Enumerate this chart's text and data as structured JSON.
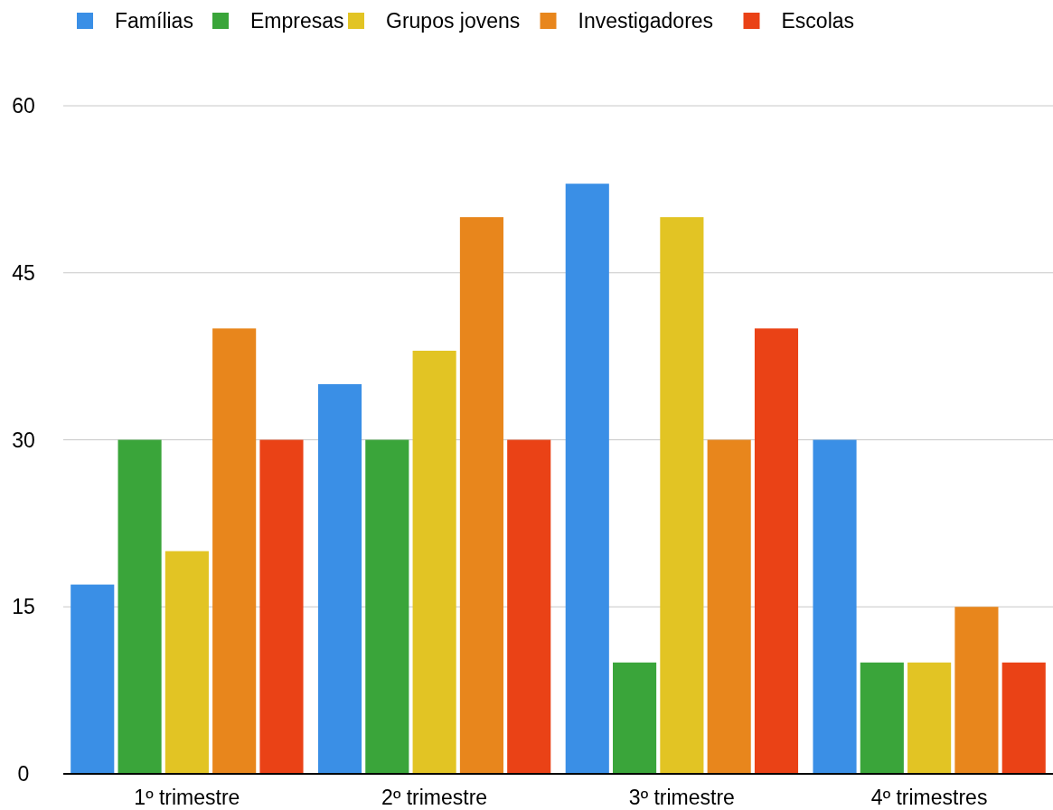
{
  "chart_data": {
    "type": "bar",
    "categories": [
      "1º trimestre",
      "2º trimestre",
      "3º trimestre",
      "4º trimestres"
    ],
    "series": [
      {
        "name": "Famílias",
        "color": "#3a8fe6",
        "values": [
          17,
          35,
          53,
          30
        ]
      },
      {
        "name": "Empresas",
        "color": "#3aa53a",
        "values": [
          30,
          30,
          10,
          10
        ]
      },
      {
        "name": "Grupos jovens",
        "color": "#e2c424",
        "values": [
          20,
          38,
          50,
          10
        ]
      },
      {
        "name": "Investigadores",
        "color": "#e8861c",
        "values": [
          40,
          50,
          30,
          15
        ]
      },
      {
        "name": "Escolas",
        "color": "#ea4216",
        "values": [
          30,
          30,
          40,
          10
        ]
      }
    ],
    "ylim": [
      0,
      60
    ],
    "yticks": [
      0,
      15,
      30,
      45,
      60
    ],
    "grid": "y",
    "legend": "top"
  }
}
